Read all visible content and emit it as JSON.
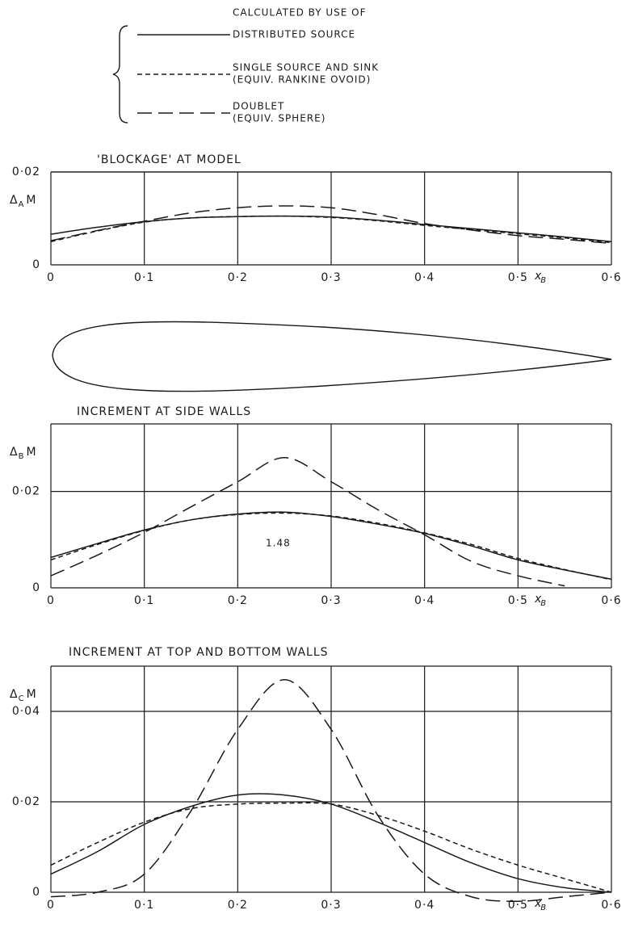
{
  "legend_heading": "CALCULATED BY USE OF",
  "chart_data": [
    {
      "type": "line",
      "title": "'BLOCKAGE' AT MODEL",
      "ylabel": [
        "Δ",
        "A",
        "M"
      ],
      "xlabel": [
        "x",
        "B"
      ],
      "x": [
        0,
        0.05,
        0.1,
        0.15,
        0.2,
        0.25,
        0.3,
        0.35,
        0.4,
        0.45,
        0.5,
        0.55,
        0.6
      ],
      "xlim": [
        0,
        0.6
      ],
      "ylim": [
        0,
        0.02
      ],
      "xticks": [
        0,
        {
          "value": 0.1,
          "label": "0·1"
        },
        {
          "value": 0.2,
          "label": "0·2"
        },
        {
          "value": 0.3,
          "label": "0·3"
        },
        {
          "value": 0.4,
          "label": "0·4"
        },
        {
          "value": 0.5,
          "label": "0·5"
        },
        {
          "value": 0.6,
          "label": "0·6"
        }
      ],
      "yticks": [
        0,
        {
          "value": 0.02,
          "label": "0·02"
        }
      ],
      "series": [
        {
          "name": "DISTRIBUTED SOURCE",
          "dash": "solid",
          "color": "#1a1a1a",
          "values": [
            0.0066,
            0.0081,
            0.0093,
            0.0101,
            0.0104,
            0.0105,
            0.0103,
            0.0096,
            0.0087,
            0.0078,
            0.0069,
            0.006,
            0.005
          ]
        },
        {
          "name": "SINGLE SOURCE AND SINK",
          "note": "(EQUIV. RANKINE OVOID)",
          "dash": "short",
          "color": "#1a1a1a",
          "values": [
            0.005,
            0.0073,
            0.0092,
            0.0101,
            0.0104,
            0.0105,
            0.0102,
            0.0095,
            0.0085,
            0.0076,
            0.0067,
            0.0058,
            0.0048
          ]
        },
        {
          "name": "DOUBLET",
          "note": "(EQUIV. SPHERE)",
          "dash": "long",
          "color": "#1a1a1a",
          "values": [
            0.0052,
            0.0074,
            0.0094,
            0.0112,
            0.0123,
            0.0127,
            0.0123,
            0.0108,
            0.0089,
            0.0075,
            0.0063,
            0.0055,
            0.0046
          ]
        }
      ]
    },
    {
      "type": "line",
      "title": "INCREMENT AT SIDE WALLS",
      "ylabel": [
        "Δ",
        "B",
        "M"
      ],
      "xlabel": [
        "x",
        "B"
      ],
      "annotation": "1.48",
      "x": [
        0,
        0.05,
        0.1,
        0.15,
        0.2,
        0.25,
        0.3,
        0.35,
        0.4,
        0.45,
        0.5,
        0.55,
        0.6
      ],
      "xlim": [
        0,
        0.6
      ],
      "ylim": [
        0,
        0.034
      ],
      "xticks": [
        0,
        {
          "value": 0.1,
          "label": "0·1"
        },
        {
          "value": 0.2,
          "label": "0·2"
        },
        {
          "value": 0.3,
          "label": "0·3"
        },
        {
          "value": 0.4,
          "label": "0·4"
        },
        {
          "value": 0.5,
          "label": "0·5"
        },
        {
          "value": 0.6,
          "label": "0·6"
        }
      ],
      "yticks": [
        0,
        {
          "value": 0.02,
          "label": "0·02"
        }
      ],
      "series": [
        {
          "dash": "solid",
          "color": "#1a1a1a",
          "values": [
            0.0063,
            0.0092,
            0.012,
            0.0141,
            0.0153,
            0.0157,
            0.0148,
            0.0132,
            0.0113,
            0.0087,
            0.0058,
            0.0037,
            0.0018
          ]
        },
        {
          "dash": "short",
          "color": "#1a1a1a",
          "values": [
            0.0058,
            0.009,
            0.0119,
            0.0141,
            0.0152,
            0.0155,
            0.0149,
            0.0134,
            0.0114,
            0.009,
            0.0061,
            0.0038,
            0.0017
          ]
        },
        {
          "dash": "long",
          "color": "#1a1a1a",
          "values": [
            0.0025,
            0.0068,
            0.0115,
            0.0168,
            0.022,
            0.027,
            0.022,
            0.0162,
            0.011,
            0.0055,
            0.0025,
            0.0004,
            null
          ]
        }
      ]
    },
    {
      "type": "line",
      "title": "INCREMENT AT TOP AND BOTTOM WALLS",
      "ylabel": [
        "Δ",
        "C",
        "M"
      ],
      "xlabel": [
        "x",
        "B"
      ],
      "x": [
        0,
        0.05,
        0.1,
        0.15,
        0.2,
        0.25,
        0.3,
        0.35,
        0.4,
        0.45,
        0.5,
        0.55,
        0.6
      ],
      "xlim": [
        0,
        0.6
      ],
      "ylim": [
        0,
        0.05
      ],
      "xticks": [
        0,
        {
          "value": 0.1,
          "label": "0·1"
        },
        {
          "value": 0.2,
          "label": "0·2"
        },
        {
          "value": 0.3,
          "label": "0·3"
        },
        {
          "value": 0.4,
          "label": "0·4"
        },
        {
          "value": 0.5,
          "label": "0·5"
        },
        {
          "value": 0.6,
          "label": "0·6"
        }
      ],
      "yticks": [
        0,
        {
          "value": 0.02,
          "label": "0·02"
        },
        {
          "value": 0.04,
          "label": "0·04"
        }
      ],
      "series": [
        {
          "dash": "solid",
          "color": "#1a1a1a",
          "values": [
            0.004,
            0.009,
            0.015,
            0.019,
            0.0215,
            0.0215,
            0.0195,
            0.0155,
            0.011,
            0.0065,
            0.003,
            0.001,
            0
          ]
        },
        {
          "dash": "short",
          "color": "#1a1a1a",
          "values": [
            0.006,
            0.011,
            0.0155,
            0.0185,
            0.0195,
            0.0197,
            0.0195,
            0.017,
            0.0135,
            0.0095,
            0.006,
            0.003,
            0
          ]
        },
        {
          "dash": "long",
          "color": "#1a1a1a",
          "values": [
            -0.001,
            0,
            0.004,
            0.018,
            0.036,
            0.047,
            0.036,
            0.017,
            0.004,
            -0.001,
            -0.002,
            -0.001,
            0
          ]
        }
      ]
    }
  ]
}
